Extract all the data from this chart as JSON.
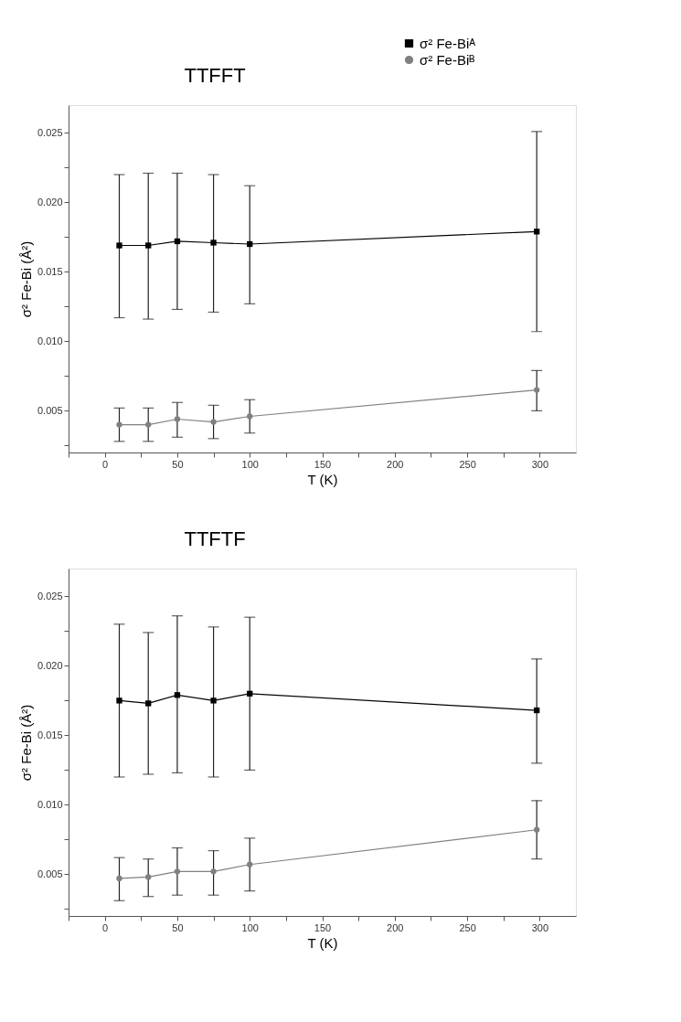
{
  "chart_data": [
    {
      "type": "line",
      "title": "TTFFT",
      "xlabel": "T (K)",
      "ylabel": "σ² Fe-Bi (Å²)",
      "legend": "top right",
      "line_style": "solid",
      "x": [
        10,
        30,
        50,
        75,
        100,
        298
      ],
      "xlim": [
        -25,
        325
      ],
      "ylim": [
        0.002,
        0.027
      ],
      "xticks": [
        {
          "value": -25,
          "label": null
        },
        0,
        {
          "value": 25,
          "label": null
        },
        50,
        {
          "value": 75,
          "label": null
        },
        100,
        {
          "value": 125,
          "label": null
        },
        150,
        {
          "value": 175,
          "label": null
        },
        200,
        {
          "value": 225,
          "label": null
        },
        250,
        {
          "value": 275,
          "label": null
        },
        300
      ],
      "yticks": [
        {
          "value": 0.0025,
          "label": null
        },
        {
          "value": 0.005,
          "label": "0.005"
        },
        {
          "value": 0.0075,
          "label": null
        },
        {
          "value": 0.01,
          "label": "0.010"
        },
        {
          "value": 0.0125,
          "label": null
        },
        {
          "value": 0.015,
          "label": "0.015"
        },
        {
          "value": 0.0175,
          "label": null
        },
        {
          "value": 0.02,
          "label": "0.020"
        },
        {
          "value": 0.0225,
          "label": null
        },
        {
          "value": 0.025,
          "label": "0.025"
        }
      ],
      "series": [
        {
          "name": "σ² Fe-Biᴬ",
          "color": "#000000",
          "marker": "square",
          "values": [
            0.0169,
            0.0169,
            0.0172,
            0.0171,
            0.017,
            0.0179
          ],
          "errors": [
            [
              0.0117,
              0.022
            ],
            [
              0.0116,
              0.0221
            ],
            [
              0.0123,
              0.0221
            ],
            [
              0.0121,
              0.022
            ],
            [
              0.0127,
              0.0212
            ],
            [
              0.0107,
              0.0251
            ]
          ]
        },
        {
          "name": "σ² Fe-Biᴮ",
          "color": "#808080",
          "marker": "circle",
          "values": [
            0.004,
            0.004,
            0.0044,
            0.0042,
            0.0046,
            0.0065
          ],
          "errors": [
            [
              0.0028,
              0.0052
            ],
            [
              0.0028,
              0.0052
            ],
            [
              0.0031,
              0.0056
            ],
            [
              0.003,
              0.0054
            ],
            [
              0.0034,
              0.0058
            ],
            [
              0.005,
              0.0079
            ]
          ]
        }
      ]
    },
    {
      "type": "line",
      "title": "TTFTF",
      "xlabel": "T (K)",
      "ylabel": "σ² Fe-Bi (Å²)",
      "legend": "top right",
      "line_style": "solid",
      "x": [
        10,
        30,
        50,
        75,
        100,
        298
      ],
      "xlim": [
        -25,
        325
      ],
      "ylim": [
        0.002,
        0.027
      ],
      "xticks": [
        {
          "value": -25,
          "label": null
        },
        0,
        {
          "value": 25,
          "label": null
        },
        50,
        {
          "value": 75,
          "label": null
        },
        100,
        {
          "value": 125,
          "label": null
        },
        150,
        {
          "value": 175,
          "label": null
        },
        200,
        {
          "value": 225,
          "label": null
        },
        250,
        {
          "value": 275,
          "label": null
        },
        300
      ],
      "yticks": [
        {
          "value": 0.0025,
          "label": null
        },
        {
          "value": 0.005,
          "label": "0.005"
        },
        {
          "value": 0.0075,
          "label": null
        },
        {
          "value": 0.01,
          "label": "0.010"
        },
        {
          "value": 0.0125,
          "label": null
        },
        {
          "value": 0.015,
          "label": "0.015"
        },
        {
          "value": 0.0175,
          "label": null
        },
        {
          "value": 0.02,
          "label": "0.020"
        },
        {
          "value": 0.0225,
          "label": null
        },
        {
          "value": 0.025,
          "label": "0.025"
        }
      ],
      "series": [
        {
          "name": "σ² Fe-Biᴬ",
          "color": "#000000",
          "marker": "square",
          "values": [
            0.0175,
            0.0173,
            0.0179,
            0.0175,
            0.018,
            0.0168
          ],
          "errors": [
            [
              0.012,
              0.023
            ],
            [
              0.0122,
              0.0224
            ],
            [
              0.0123,
              0.0236
            ],
            [
              0.012,
              0.0228
            ],
            [
              0.0125,
              0.0235
            ],
            [
              0.013,
              0.0205
            ]
          ]
        },
        {
          "name": "σ² Fe-Biᴮ",
          "color": "#808080",
          "marker": "circle",
          "values": [
            0.0047,
            0.0048,
            0.0052,
            0.0052,
            0.0057,
            0.0082
          ],
          "errors": [
            [
              0.0031,
              0.0062
            ],
            [
              0.0034,
              0.0061
            ],
            [
              0.0035,
              0.0069
            ],
            [
              0.0035,
              0.0067
            ],
            [
              0.0038,
              0.0076
            ],
            [
              0.0061,
              0.0103
            ]
          ]
        }
      ]
    }
  ]
}
